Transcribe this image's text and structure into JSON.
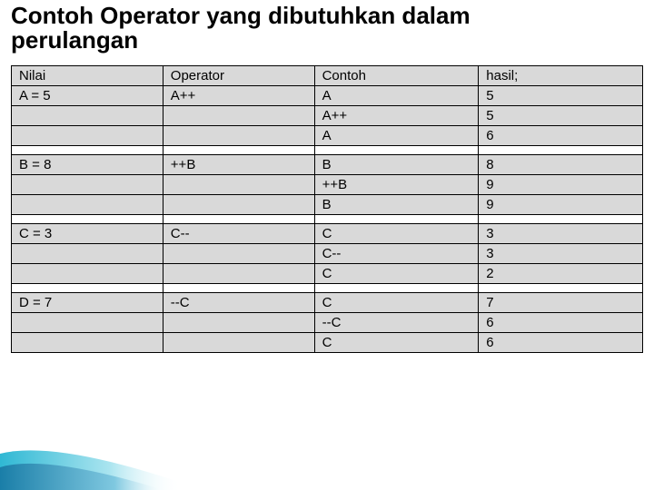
{
  "title_text": "Contoh Operator yang dibutuhkan dalam perulangan",
  "title_fontsize": "26px",
  "cell_fontsize": "15px",
  "colors": {
    "cell_bg": "#d9d9d9",
    "spacer_bg": "#ffffff",
    "border": "#000000",
    "title_color": "#000000"
  },
  "header": {
    "c0": "Nilai",
    "c1": "Operator",
    "c2": "Contoh",
    "c3": "hasil;"
  },
  "groups": [
    {
      "nilai": "A = 5",
      "op": "A++",
      "rows": [
        {
          "c": "A",
          "h": "5"
        },
        {
          "c": "A++",
          "h": "5"
        },
        {
          "c": "A",
          "h": "6"
        }
      ]
    },
    {
      "nilai": "B = 8",
      "op": "++B",
      "rows": [
        {
          "c": "B",
          "h": "8"
        },
        {
          "c": "++B",
          "h": "9"
        },
        {
          "c": "B",
          "h": "9"
        }
      ]
    },
    {
      "nilai": "C = 3",
      "op": "C--",
      "rows": [
        {
          "c": "C",
          "h": "3"
        },
        {
          "c": "C--",
          "h": "3"
        },
        {
          "c": "C",
          "h": "2"
        }
      ]
    },
    {
      "nilai": "D = 7",
      "op": "--C",
      "rows": [
        {
          "c": "C",
          "h": "7"
        },
        {
          "c": "--C",
          "h": "6"
        },
        {
          "c": "C",
          "h": "6"
        }
      ]
    }
  ],
  "col_widths": [
    "24%",
    "24%",
    "26%",
    "26%"
  ]
}
